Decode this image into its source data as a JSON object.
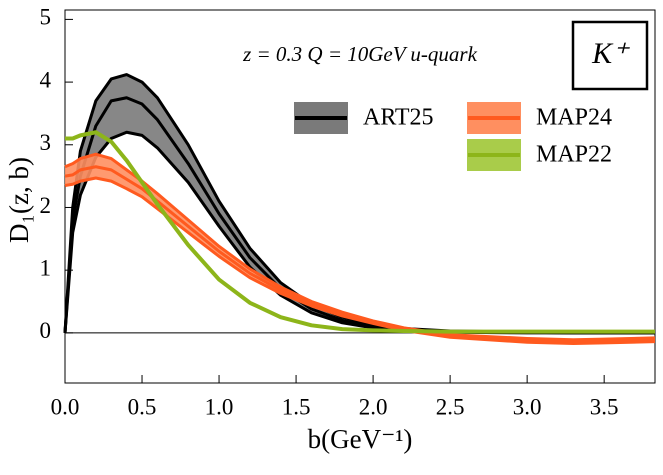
{
  "chart_data": {
    "type": "band-line",
    "annotations": [
      "z = 0.3  Q = 10GeV  u-quark",
      "K⁺"
    ],
    "x_label": "b(GeV⁻¹)",
    "y_label": "D₁(z, b)",
    "x": [
      0,
      0.05,
      0.1,
      0.2,
      0.3,
      0.4,
      0.5,
      0.6,
      0.8,
      1.0,
      1.2,
      1.4,
      1.6,
      1.8,
      2.0,
      2.2,
      2.5,
      3.0,
      3.3,
      3.5,
      3.83
    ],
    "series": [
      {
        "name": "ART25",
        "color": "#000000",
        "band_color": "#7a7a7a",
        "values": [
          0,
          1.8,
          2.5,
          3.3,
          3.7,
          3.75,
          3.65,
          3.4,
          2.7,
          1.9,
          1.2,
          0.7,
          0.38,
          0.2,
          0.1,
          0.05,
          0.02,
          0.01,
          0,
          0,
          0
        ],
        "upper": [
          0,
          2.0,
          2.9,
          3.7,
          4.05,
          4.12,
          4.0,
          3.75,
          3.0,
          2.1,
          1.35,
          0.8,
          0.45,
          0.25,
          0.13,
          0.07,
          0.03,
          0.01,
          0,
          0,
          0
        ],
        "lower": [
          0,
          1.6,
          2.2,
          2.8,
          3.1,
          3.2,
          3.15,
          2.95,
          2.4,
          1.7,
          1.05,
          0.6,
          0.32,
          0.16,
          0.08,
          0.04,
          0.01,
          0,
          0,
          0,
          0
        ]
      },
      {
        "name": "MAP24",
        "color": "#ff5a1f",
        "band_color": "#ff8f60",
        "values": [
          2.5,
          2.52,
          2.6,
          2.65,
          2.6,
          2.45,
          2.3,
          2.1,
          1.7,
          1.3,
          0.95,
          0.68,
          0.47,
          0.3,
          0.17,
          0.06,
          -0.05,
          -0.12,
          -0.14,
          -0.13,
          -0.11
        ],
        "upper": [
          2.65,
          2.7,
          2.78,
          2.85,
          2.78,
          2.6,
          2.42,
          2.22,
          1.8,
          1.38,
          1.02,
          0.73,
          0.5,
          0.33,
          0.19,
          0.08,
          -0.03,
          -0.09,
          -0.11,
          -0.1,
          -0.08
        ],
        "lower": [
          2.35,
          2.37,
          2.42,
          2.47,
          2.42,
          2.3,
          2.17,
          1.98,
          1.6,
          1.22,
          0.88,
          0.63,
          0.43,
          0.27,
          0.15,
          0.04,
          -0.07,
          -0.15,
          -0.17,
          -0.16,
          -0.14
        ]
      },
      {
        "name": "MAP22",
        "color": "#8db51a",
        "band_color": "#a9cc4a",
        "values": [
          3.1,
          3.1,
          3.15,
          3.2,
          3.05,
          2.75,
          2.4,
          2.05,
          1.4,
          0.85,
          0.48,
          0.25,
          0.12,
          0.06,
          0.04,
          0.03,
          0.02,
          0.02,
          0.02,
          0.02,
          0.02
        ]
      }
    ],
    "xlim": [
      0,
      3.83
    ],
    "ylim": [
      -0.8,
      5.15
    ],
    "xticks": [
      {
        "value": 0,
        "label": "0.0"
      },
      0.5,
      {
        "value": 1,
        "label": "1.0"
      },
      1.5,
      {
        "value": 2,
        "label": "2.0"
      },
      2.5,
      {
        "value": 3,
        "label": "3.0"
      },
      3.5
    ],
    "yticks": [
      0,
      1,
      2,
      3,
      4,
      5
    ]
  }
}
